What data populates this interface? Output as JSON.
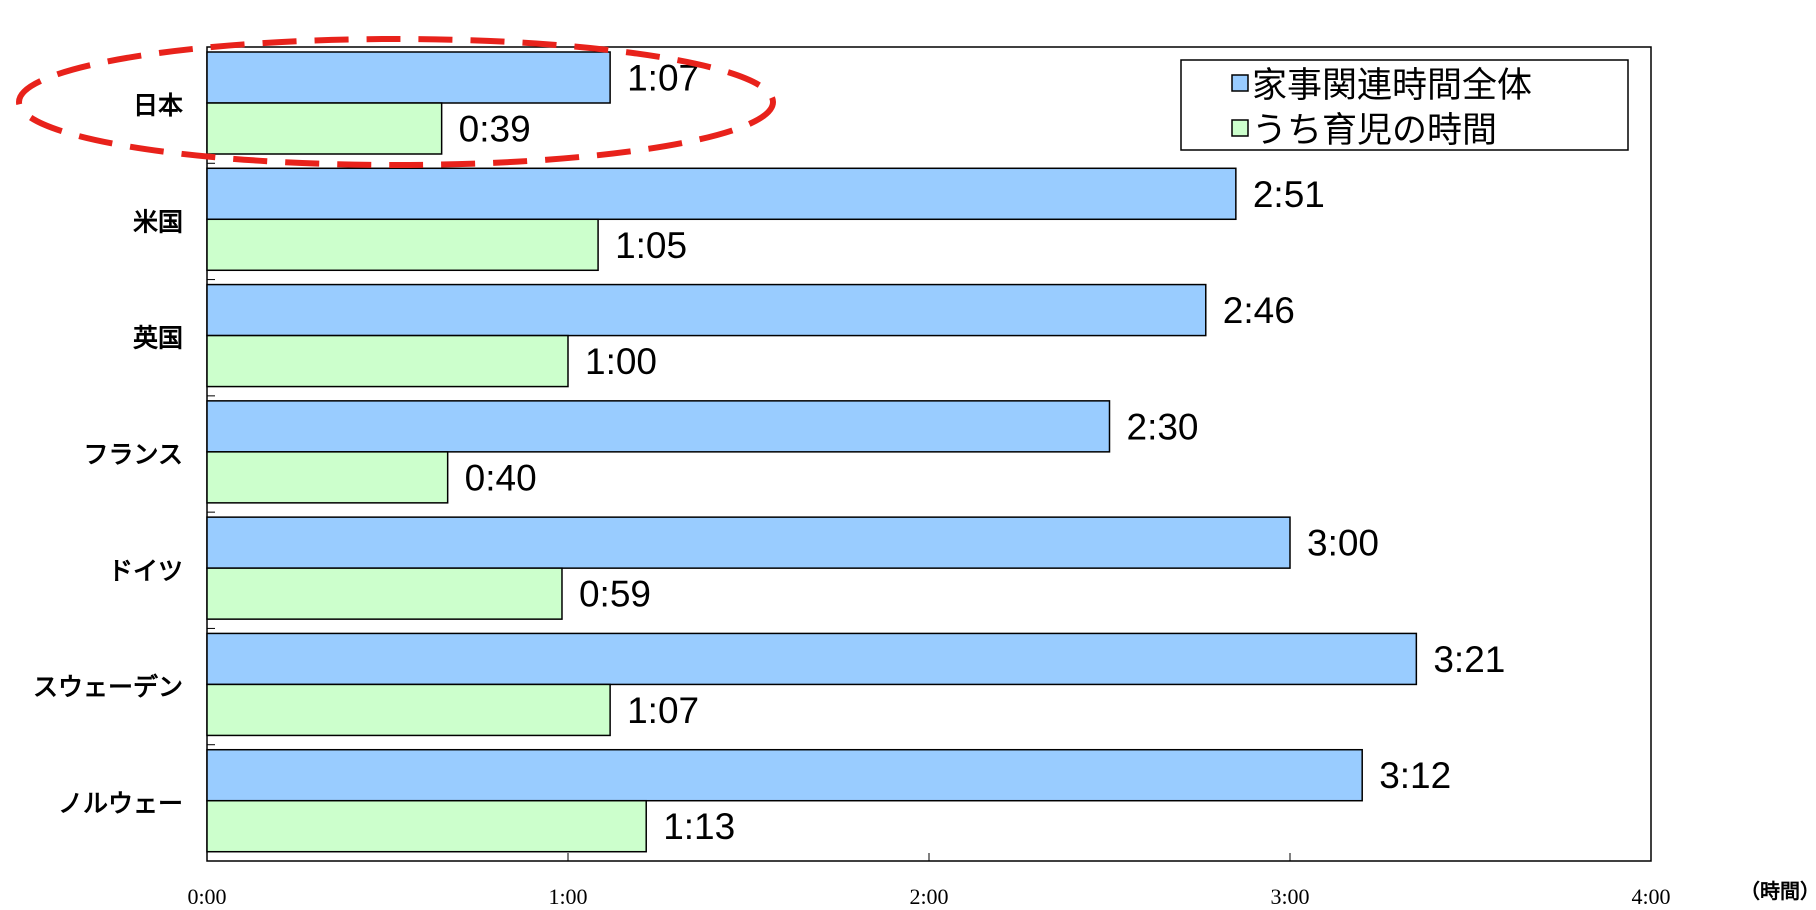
{
  "chart_data": {
    "type": "bar",
    "orientation": "horizontal",
    "categories": [
      "日本",
      "米国",
      "英国",
      "フランス",
      "ドイツ",
      "スウェーデン",
      "ノルウェー"
    ],
    "series": [
      {
        "name": "家事関連時間全体",
        "color": "#99CCFF",
        "values": [
          67,
          171,
          166,
          150,
          180,
          201,
          192
        ],
        "labels": [
          "1:07",
          "2:51",
          "2:46",
          "2:30",
          "3:00",
          "3:21",
          "3:12"
        ]
      },
      {
        "name": "うち育児の時間",
        "color": "#CCFFCC",
        "values": [
          39,
          65,
          60,
          40,
          59,
          67,
          73
        ],
        "labels": [
          "0:39",
          "1:05",
          "1:00",
          "0:40",
          "0:59",
          "1:07",
          "1:13"
        ]
      }
    ],
    "xlim": [
      0,
      240
    ],
    "xticks": [
      0,
      60,
      120,
      180,
      240
    ],
    "xtick_labels": [
      "0:00",
      "1:00",
      "2:00",
      "3:00",
      "4:00"
    ],
    "xunit": "（時間）",
    "legend_position": "top-right",
    "highlight": {
      "category": "日本",
      "style": "dashed-ellipse",
      "color": "#E8221B"
    },
    "grid": false
  }
}
